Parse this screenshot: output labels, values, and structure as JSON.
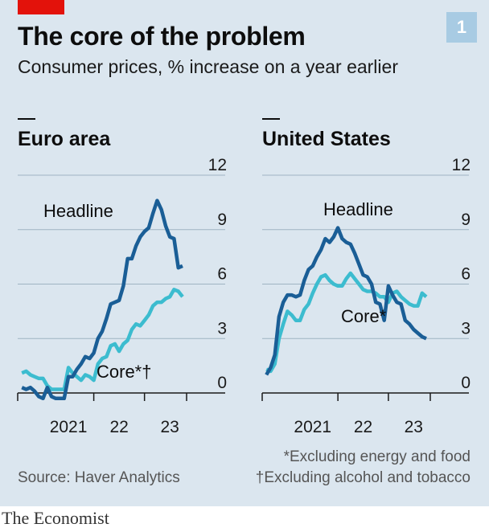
{
  "header": {
    "title": "The core of the problem",
    "chart_number": "1",
    "subtitle": "Consumer prices, % increase on a year earlier"
  },
  "footer": {
    "source": "Source: Haver Analytics",
    "footnote_1": "*Excluding energy and food",
    "footnote_2": "†Excluding alcohol and tobacco",
    "logo": "The Economist"
  },
  "colors": {
    "background": "#dbe6ef",
    "headline": "#1a5e96",
    "core": "#3cbccf",
    "brand_red": "#e3120b"
  },
  "chart_data": [
    {
      "type": "line",
      "title": "Euro area",
      "x_tick_labels": [
        "2021",
        "22",
        "23"
      ],
      "x_ticks": [
        2021.0,
        2022.0,
        2023.0
      ],
      "xlim": [
        2020.0,
        2023.33
      ],
      "ylim": [
        0,
        12
      ],
      "y_ticks": [
        0,
        3,
        6,
        9,
        12
      ],
      "grid": true,
      "annotations": [
        "Headline",
        "Core*†"
      ],
      "series": [
        {
          "name": "Headline",
          "x": [
            2020.083,
            2020.167,
            2020.25,
            2020.333,
            2020.417,
            2020.5,
            2020.583,
            2020.667,
            2020.75,
            2020.833,
            2020.917,
            2021.0,
            2021.083,
            2021.167,
            2021.25,
            2021.333,
            2021.417,
            2021.5,
            2021.583,
            2021.667,
            2021.75,
            2021.833,
            2021.917,
            2022.0,
            2022.083,
            2022.167,
            2022.25,
            2022.333,
            2022.417,
            2022.5,
            2022.583,
            2022.667,
            2022.75,
            2022.833,
            2022.917,
            2023.0,
            2023.083,
            2023.167,
            2023.25
          ],
          "values": [
            0.3,
            0.2,
            0.3,
            0.1,
            -0.2,
            -0.3,
            0.3,
            -0.2,
            -0.3,
            -0.3,
            -0.3,
            0.9,
            0.9,
            1.3,
            1.6,
            2.0,
            1.9,
            2.2,
            3.0,
            3.4,
            4.1,
            4.9,
            5.0,
            5.1,
            5.9,
            7.4,
            7.4,
            8.1,
            8.6,
            8.9,
            9.1,
            9.9,
            10.6,
            10.1,
            9.2,
            8.6,
            8.5,
            6.9,
            7.0
          ]
        },
        {
          "name": "Core*†",
          "x": [
            2020.083,
            2020.167,
            2020.25,
            2020.333,
            2020.417,
            2020.5,
            2020.583,
            2020.667,
            2020.75,
            2020.833,
            2020.917,
            2021.0,
            2021.083,
            2021.167,
            2021.25,
            2021.333,
            2021.417,
            2021.5,
            2021.583,
            2021.667,
            2021.75,
            2021.833,
            2021.917,
            2022.0,
            2022.083,
            2022.167,
            2022.25,
            2022.333,
            2022.417,
            2022.5,
            2022.583,
            2022.667,
            2022.75,
            2022.833,
            2022.917,
            2023.0,
            2023.083,
            2023.167,
            2023.25
          ],
          "values": [
            1.1,
            1.2,
            1.0,
            0.9,
            0.8,
            0.8,
            0.4,
            0.2,
            0.2,
            0.2,
            0.2,
            1.4,
            1.1,
            0.9,
            0.7,
            1.0,
            0.9,
            0.7,
            1.6,
            1.9,
            2.0,
            2.6,
            2.7,
            2.3,
            2.7,
            2.9,
            3.5,
            3.8,
            3.7,
            4.0,
            4.3,
            4.8,
            5.0,
            5.0,
            5.2,
            5.3,
            5.7,
            5.6,
            5.3
          ]
        }
      ]
    },
    {
      "type": "line",
      "title": "United States",
      "x_tick_labels": [
        "2021",
        "22",
        "23"
      ],
      "x_ticks": [
        2021.0,
        2022.0,
        2023.0
      ],
      "xlim": [
        2020.0,
        2023.33
      ],
      "ylim": [
        0,
        12
      ],
      "y_ticks": [
        0,
        3,
        6,
        9,
        12
      ],
      "grid": true,
      "annotations": [
        "Headline",
        "Core*"
      ],
      "series": [
        {
          "name": "Headline",
          "x": [
            2020.083,
            2020.167,
            2020.25,
            2020.333,
            2020.417,
            2020.5,
            2020.583,
            2020.667,
            2020.75,
            2020.833,
            2020.917,
            2021.0,
            2021.083,
            2021.167,
            2021.25,
            2021.333,
            2021.417,
            2021.5,
            2021.583,
            2021.667,
            2021.75,
            2021.833,
            2021.917,
            2022.0,
            2022.083,
            2022.167,
            2022.25,
            2022.333,
            2022.417,
            2022.5,
            2022.583,
            2022.667,
            2022.75,
            2022.833,
            2022.917,
            2023.0,
            2023.083,
            2023.167,
            2023.25
          ],
          "values": [
            1.0,
            1.4,
            2.1,
            4.2,
            5.0,
            5.4,
            5.4,
            5.3,
            5.4,
            6.2,
            6.8,
            7.0,
            7.5,
            7.9,
            8.5,
            8.3,
            8.6,
            9.1,
            8.5,
            8.3,
            8.2,
            7.7,
            7.1,
            6.5,
            6.4,
            6.0,
            5.0,
            4.9,
            4.0,
            5.9,
            5.4,
            5.0,
            4.9,
            4.0,
            3.8,
            3.5,
            3.3,
            3.1,
            3.0
          ]
        },
        {
          "name": "Core*",
          "x": [
            2020.083,
            2020.167,
            2020.25,
            2020.333,
            2020.417,
            2020.5,
            2020.583,
            2020.667,
            2020.75,
            2020.833,
            2020.917,
            2021.0,
            2021.083,
            2021.167,
            2021.25,
            2021.333,
            2021.417,
            2021.5,
            2021.583,
            2021.667,
            2021.75,
            2021.833,
            2021.917,
            2022.0,
            2022.083,
            2022.167,
            2022.25,
            2022.333,
            2022.417,
            2022.5,
            2022.583,
            2022.667,
            2022.75,
            2022.833,
            2022.917,
            2023.0,
            2023.083,
            2023.167,
            2023.25
          ],
          "values": [
            1.3,
            1.2,
            1.6,
            3.0,
            3.8,
            4.5,
            4.3,
            4.0,
            4.0,
            4.6,
            4.9,
            5.5,
            6.0,
            6.4,
            6.5,
            6.2,
            6.0,
            5.9,
            5.9,
            6.3,
            6.6,
            6.3,
            6.0,
            5.7,
            5.6,
            5.6,
            5.5,
            5.3,
            5.3,
            5.0,
            5.5,
            5.6,
            5.3,
            5.1,
            4.9,
            4.8,
            4.8,
            5.5,
            5.3
          ]
        }
      ]
    }
  ]
}
